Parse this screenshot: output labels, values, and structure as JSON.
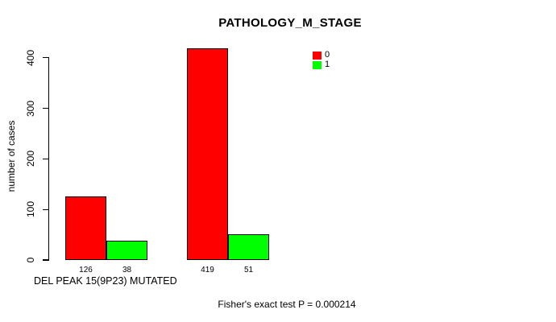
{
  "chart_data": {
    "type": "bar",
    "title": "PATHOLOGY_M_STAGE",
    "ylabel": "number of cases",
    "xlabel": "DEL PEAK 15(9P23) MUTATED",
    "yticks": [
      0,
      100,
      200,
      300,
      400
    ],
    "ylim": [
      0,
      420
    ],
    "grid": false,
    "legend_position": "top-right-inside",
    "series": [
      {
        "name": "0",
        "color": "#ff0000",
        "values": [
          126,
          419
        ]
      },
      {
        "name": "1",
        "color": "#00ff00",
        "values": [
          38,
          51
        ]
      }
    ],
    "bar_value_labels": [
      [
        "126",
        "38"
      ],
      [
        "419",
        "51"
      ]
    ],
    "footnote": "Fisher's exact test P = 0.000214"
  },
  "colors": {
    "background": "#ffffff",
    "text": "#000000",
    "bar_border": "#000000",
    "axis": "#000000"
  }
}
